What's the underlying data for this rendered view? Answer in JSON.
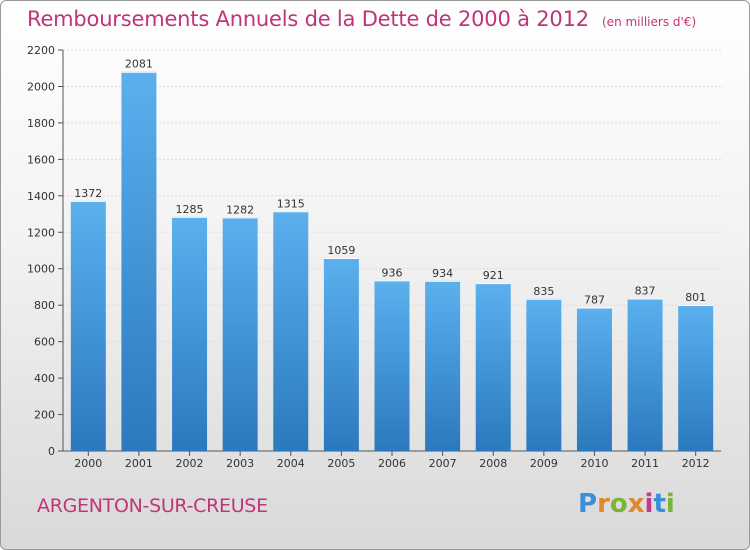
{
  "chart_data": {
    "type": "bar",
    "title": "Remboursements Annuels de la Dette de 2000 à 2012",
    "subtitle": "(en milliers d'€)",
    "categories": [
      "2000",
      "2001",
      "2002",
      "2003",
      "2004",
      "2005",
      "2006",
      "2007",
      "2008",
      "2009",
      "2010",
      "2011",
      "2012"
    ],
    "values": [
      1372,
      2081,
      1285,
      1282,
      1315,
      1059,
      936,
      934,
      921,
      835,
      787,
      837,
      801
    ],
    "y_ticks": [
      0,
      200,
      400,
      600,
      800,
      1000,
      1200,
      1400,
      1600,
      1800,
      2000,
      2200
    ],
    "ylim": [
      0,
      2200
    ],
    "xlabel": "",
    "ylabel": "",
    "grid": true,
    "bar_color": "#4a9fe0",
    "title_color": "#c0357a"
  },
  "footer": {
    "commune": "ARGENTON-SUR-CREUSE",
    "logo": "Proxiti"
  }
}
